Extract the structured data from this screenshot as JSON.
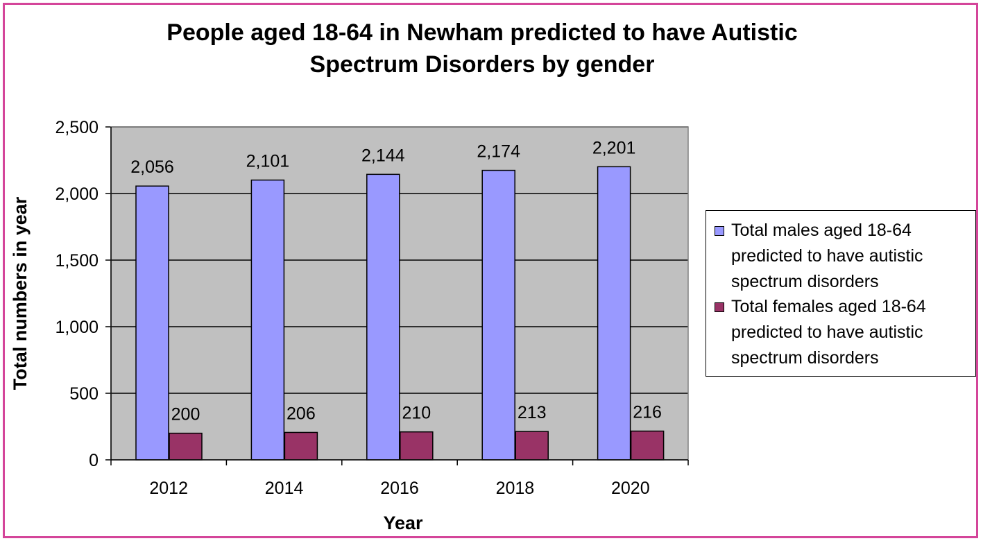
{
  "chart_data": {
    "type": "bar",
    "title_lines": [
      "People aged 18-64 in Newham predicted to have Autistic",
      "Spectrum Disorders by gender"
    ],
    "xlabel": "Year",
    "ylabel": "Total numbers in year",
    "categories": [
      "2012",
      "2014",
      "2016",
      "2018",
      "2020"
    ],
    "ylim": [
      0,
      2500
    ],
    "yticks": [
      0,
      500,
      1000,
      1500,
      2000,
      2500
    ],
    "ytick_labels": [
      "0",
      "500",
      "1,000",
      "1,500",
      "2,000",
      "2,500"
    ],
    "grid": true,
    "legend_position": "right",
    "series": [
      {
        "name": "Total males aged 18-64 predicted to have autistic spectrum disorders",
        "legend_lines": [
          "Total males aged 18-64",
          "predicted to have autistic",
          "spectrum disorders"
        ],
        "values": [
          2056,
          2101,
          2144,
          2174,
          2201
        ],
        "labels": [
          "2,056",
          "2,101",
          "2,144",
          "2,174",
          "2,201"
        ],
        "color": "#9999ff"
      },
      {
        "name": "Total females aged 18-64 predicted to have autistic spectrum disorders",
        "legend_lines": [
          "Total females aged 18-64",
          "predicted to have autistic",
          "spectrum disorders"
        ],
        "values": [
          200,
          206,
          210,
          213,
          216
        ],
        "labels": [
          "200",
          "206",
          "210",
          "213",
          "216"
        ],
        "color": "#993366"
      }
    ],
    "plot_background": "#c0c0c0",
    "frame_color": "#d4459a"
  }
}
